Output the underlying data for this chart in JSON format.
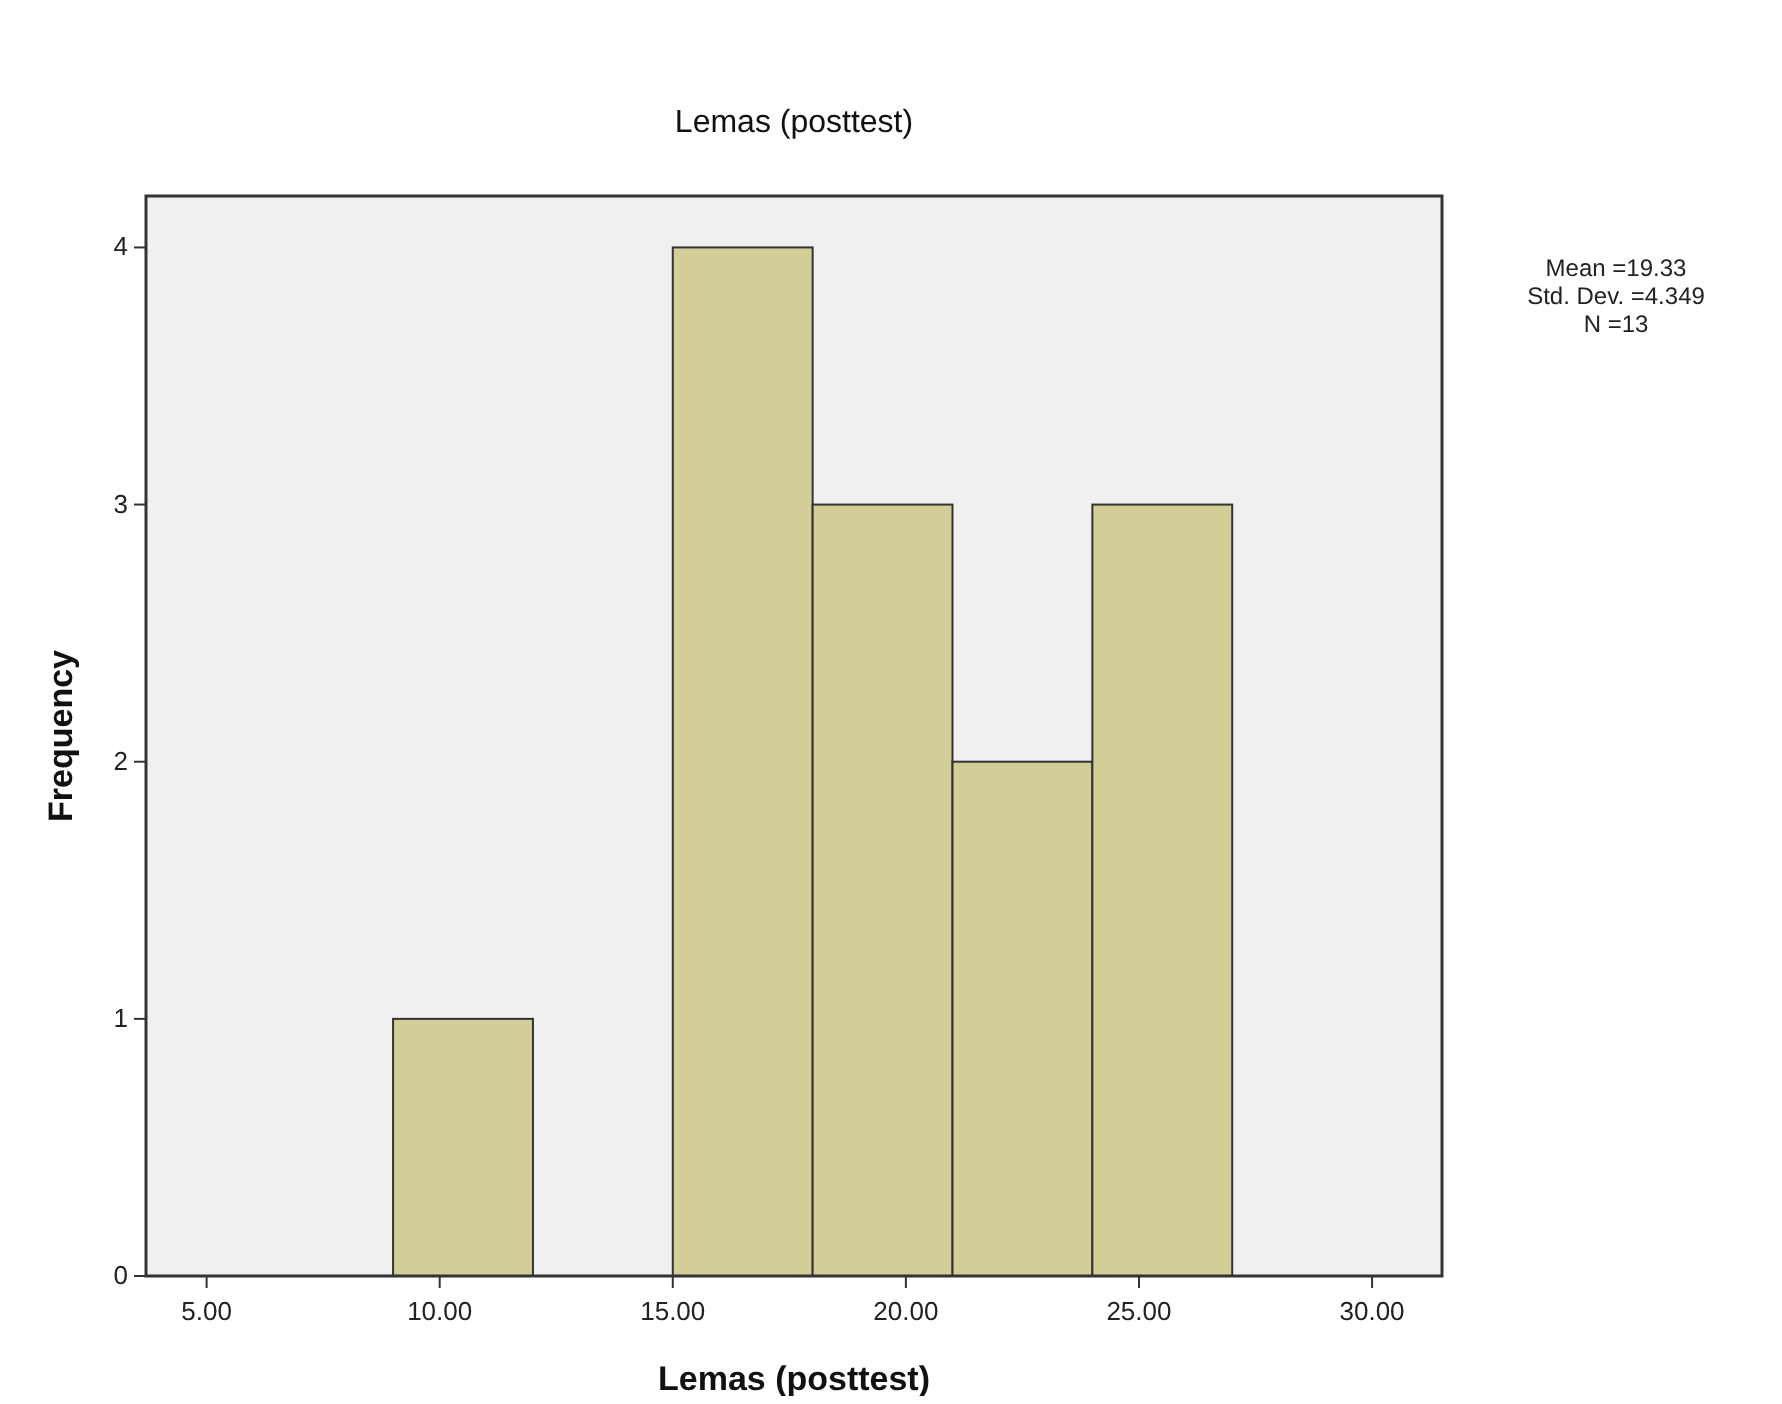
{
  "chart_data": {
    "type": "histogram",
    "title": "Lemas (posttest)",
    "xlabel": "Lemas (posttest)",
    "ylabel": "Frequency",
    "bins": [
      9,
      12,
      15,
      18,
      21,
      24,
      27
    ],
    "values": [
      1,
      0,
      4,
      3,
      2,
      3
    ],
    "color": "#d3cd98",
    "xlim": [
      3.7,
      31.5
    ],
    "xticks": [
      {
        "value": 5,
        "label": "5.00"
      },
      {
        "value": 10,
        "label": "10.00"
      },
      {
        "value": 15,
        "label": "15.00"
      },
      {
        "value": 20,
        "label": "20.00"
      },
      {
        "value": 25,
        "label": "25.00"
      },
      {
        "value": 30,
        "label": "30.00"
      }
    ],
    "ylim": [
      0,
      4.2
    ],
    "yticks": [
      0,
      1,
      2,
      3,
      4
    ],
    "grid": false,
    "annotations": [
      "Mean =19.33",
      "Std. Dev. =4.349",
      "N =13"
    ]
  }
}
